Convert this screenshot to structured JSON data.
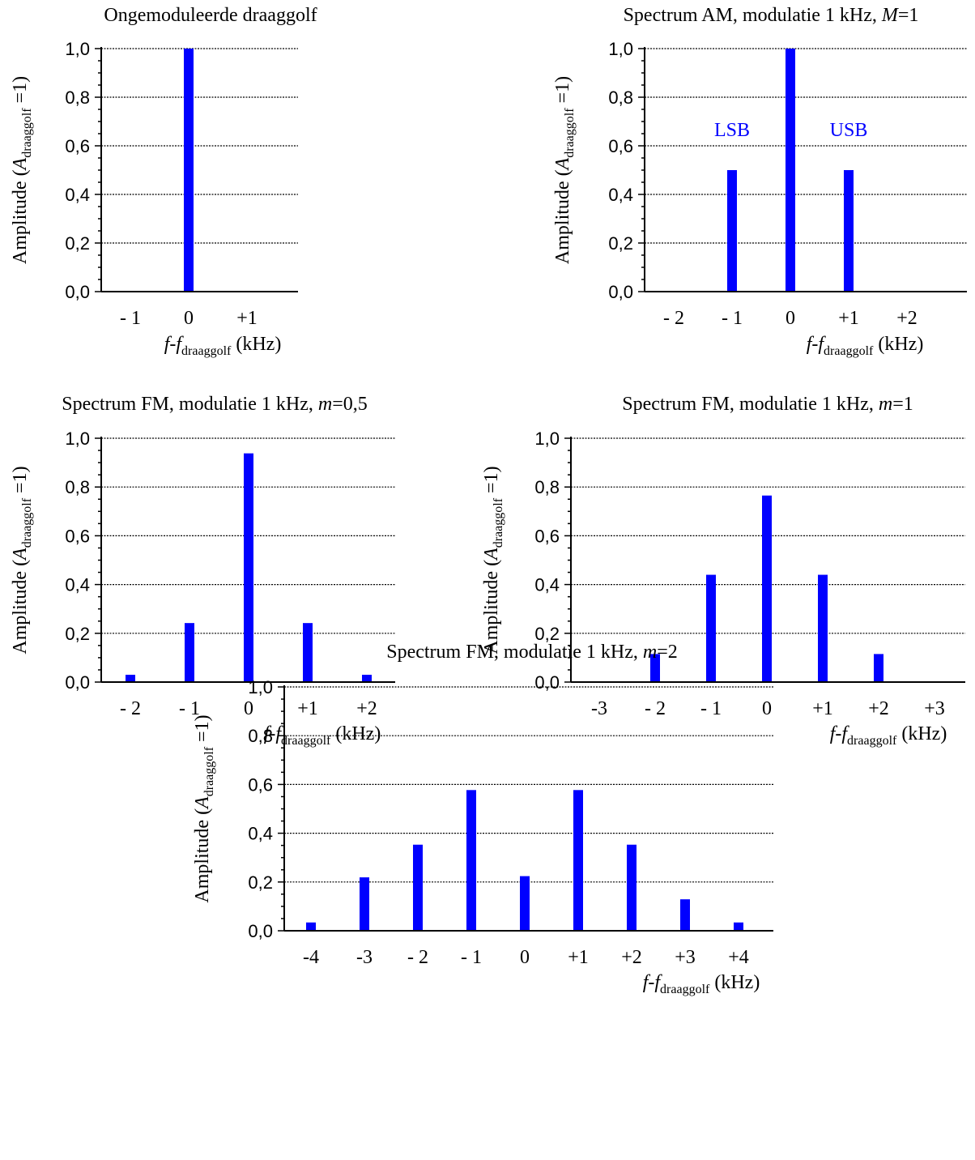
{
  "colors": {
    "bar": "#0000ff",
    "axis": "#000000",
    "grid": "#000000",
    "annotation": "#0000ff"
  },
  "ylabel": {
    "prefix": "Amplitude (",
    "var": "A",
    "sub": "draaggolf",
    "suffix": " =1)"
  },
  "xlabel": {
    "var": "f",
    "dash": "-",
    "var2": "f",
    "sub": "draaggolf",
    "unit": " (kHz)"
  },
  "chart_data": [
    {
      "id": "carrier",
      "type": "bar",
      "title": {
        "text": "Ongemoduleerde draaggolf",
        "var": "",
        "val": ""
      },
      "categories": [
        "- 1",
        "0",
        "+1"
      ],
      "values": [
        0,
        1.0,
        0
      ],
      "ylim": [
        0,
        1.0
      ],
      "yticks": [
        "0,0",
        "0,2",
        "0,4",
        "0,6",
        "0,8",
        "1,0"
      ],
      "grid": true,
      "annotations": []
    },
    {
      "id": "am",
      "type": "bar",
      "title": {
        "text": "Spectrum AM, modulatie 1 kHz,  ",
        "var": "M",
        "val": "=1"
      },
      "categories": [
        "- 2",
        "- 1",
        "0",
        "+1",
        "+2"
      ],
      "values": [
        0,
        0.5,
        1.0,
        0.5,
        0
      ],
      "ylim": [
        0,
        1.0
      ],
      "yticks": [
        "0,0",
        "0,2",
        "0,4",
        "0,6",
        "0,8",
        "1,0"
      ],
      "grid": true,
      "annotations": [
        {
          "text": "LSB",
          "x_index": 1,
          "y": 0.64
        },
        {
          "text": "USB",
          "x_index": 3,
          "y": 0.64
        }
      ]
    },
    {
      "id": "fm05",
      "type": "bar",
      "title": {
        "text": "Spectrum FM, modulatie 1 kHz,  ",
        "var": "m",
        "val": "=0,5"
      },
      "categories": [
        "- 2",
        "- 1",
        "0",
        "+1",
        "+2"
      ],
      "values": [
        0.03,
        0.242,
        0.938,
        0.242,
        0.03
      ],
      "ylim": [
        0,
        1.0
      ],
      "yticks": [
        "0,0",
        "0,2",
        "0,4",
        "0,6",
        "0,8",
        "1,0"
      ],
      "grid": true,
      "annotations": []
    },
    {
      "id": "fm1",
      "type": "bar",
      "title": {
        "text": "Spectrum FM, modulatie 1 kHz,  ",
        "var": "m",
        "val": "=1"
      },
      "categories": [
        "-3",
        "- 2",
        "- 1",
        "0",
        "+1",
        "+2",
        "+3"
      ],
      "values": [
        0.003,
        0.115,
        0.44,
        0.765,
        0.44,
        0.115,
        0.003
      ],
      "ylim": [
        0,
        1.0
      ],
      "yticks": [
        "0,0",
        "0,2",
        "0,4",
        "0,6",
        "0,8",
        "1,0"
      ],
      "grid": true,
      "annotations": []
    },
    {
      "id": "fm2",
      "type": "bar",
      "title": {
        "text": "Spectrum FM, modulatie 1 kHz,  ",
        "var": "m",
        "val": "=2"
      },
      "categories": [
        "-4",
        "-3",
        "- 2",
        "- 1",
        "0",
        "+1",
        "+2",
        "+3",
        "+4"
      ],
      "values": [
        0.034,
        0.219,
        0.353,
        0.577,
        0.224,
        0.577,
        0.353,
        0.129,
        0.034
      ],
      "ylim": [
        0,
        1.0
      ],
      "yticks": [
        "0,0",
        "0,2",
        "0,4",
        "0,6",
        "0,8",
        "1,0"
      ],
      "grid": true,
      "annotations": []
    }
  ]
}
